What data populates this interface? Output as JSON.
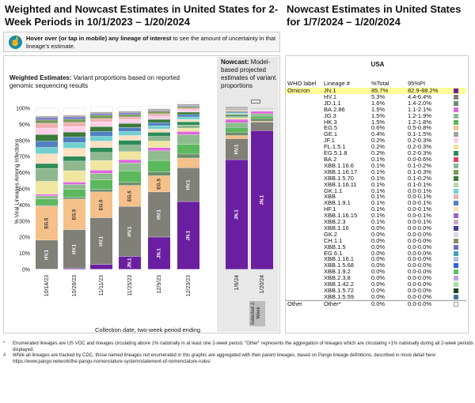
{
  "header": {
    "main_title": "Weighted and Nowcast Estimates in United States for 2-Week Periods in 10/1/2023 – 1/20/2024",
    "side_title": "Nowcast Estimates in United States for 1/7/2024 – 1/20/2024"
  },
  "hover_box": {
    "bold": "Hover over (or tap in mobile) any lineage of interest",
    "rest": " to see the amount of uncertainty in that lineage's estimate."
  },
  "weighted": {
    "bold": "Weighted Estimates:",
    "rest": " Variant proportions based on reported genomic sequencing results"
  },
  "nowcast": {
    "bold": "Nowcast:",
    "rest": " Model-based projected estimates of variant proportions"
  },
  "selected_label": "Selected 2-Week",
  "footnotes": [
    {
      "mark": "*",
      "text": "Enumerated lineages are US VOC and lineages circulating above 1% nationally in at least one 2-week period. \"Other\" represents the aggregation of lineages which are circulating <1% nationally during all 2-week periods displayed."
    },
    {
      "mark": "#",
      "text": "While all lineages are tracked by CDC, those named lineages not enumerated in this graphic are aggregated with their parent lineages, based on Pango lineage definitions, described in more detail here: https://www.pango.network/the-pango-nomenclature-system/statement-of-nomenclature-rules/."
    }
  ],
  "table": {
    "region": "USA",
    "headers": {
      "who": "WHO label",
      "lineage": "Lineage #",
      "pct": "%Total",
      "pi": "95%PI"
    },
    "groups": [
      {
        "who": "Omicron",
        "rows": [
          {
            "lineage": "JN.1",
            "pct": "85.7%",
            "pi": "82.9-88.2%",
            "color": "#6a1fa0"
          },
          {
            "lineage": "HV.1",
            "pct": "5.3%",
            "pi": "4.4-6.4%",
            "color": "#808078"
          },
          {
            "lineage": "JD.1.1",
            "pct": "1.6%",
            "pi": "1.4-2.0%",
            "color": "#6b8e6b"
          },
          {
            "lineage": "BA.2.86",
            "pct": "1.5%",
            "pi": "1.1-2.1%",
            "color": "#e066e0"
          },
          {
            "lineage": "JG.3",
            "pct": "1.5%",
            "pi": "1.2-1.9%",
            "color": "#8fbc8f"
          },
          {
            "lineage": "HK.3",
            "pct": "1.5%",
            "pi": "1.2-1.8%",
            "color": "#5cb85c"
          },
          {
            "lineage": "EG.5",
            "pct": "0.6%",
            "pi": "0.5-0.8%",
            "color": "#f5c08a"
          },
          {
            "lineage": "GE.1",
            "pct": "0.4%",
            "pi": "0.1-1.5%",
            "color": "#a0a0a0"
          },
          {
            "lineage": "JF.1",
            "pct": "0.2%",
            "pi": "0.2-0.3%",
            "color": "#ffd0e8"
          },
          {
            "lineage": "FL.1.5.1",
            "pct": "0.2%",
            "pi": "0.2-0.3%",
            "color": "#f0e6a0"
          },
          {
            "lineage": "EG.5.1.8",
            "pct": "0.2%",
            "pi": "0.2-0.3%",
            "color": "#2e8b57"
          },
          {
            "lineage": "BA.2",
            "pct": "0.1%",
            "pi": "0.0-0.6%",
            "color": "#e04060"
          },
          {
            "lineage": "XBB.1.16.6",
            "pct": "0.1%",
            "pi": "0.1-0.2%",
            "color": "#90b890"
          },
          {
            "lineage": "XBB.1.16.17",
            "pct": "0.1%",
            "pi": "0.1-0.3%",
            "color": "#7a9a5a"
          },
          {
            "lineage": "XBB.1.5.70",
            "pct": "0.1%",
            "pi": "0.1-0.2%",
            "color": "#3a7a3a"
          },
          {
            "lineage": "XBB.1.16.11",
            "pct": "0.1%",
            "pi": "0.1-0.1%",
            "color": "#b8d8a8"
          },
          {
            "lineage": "GK.1.1",
            "pct": "0.1%",
            "pi": "0.0-0.1%",
            "color": "#70d0d0"
          },
          {
            "lineage": "XBB",
            "pct": "0.1%",
            "pi": "0.0-0.1%",
            "color": "#f0b0b0"
          },
          {
            "lineage": "XBB.1.9.1",
            "pct": "0.1%",
            "pi": "0.0-0.1%",
            "color": "#5080c0"
          },
          {
            "lineage": "HF.1",
            "pct": "0.1%",
            "pi": "0.0-0.1%",
            "color": "#ffe0c0"
          },
          {
            "lineage": "XBB.1.16.15",
            "pct": "0.1%",
            "pi": "0.0-0.1%",
            "color": "#a060c0"
          },
          {
            "lineage": "XBB.2.3",
            "pct": "0.1%",
            "pi": "0.0-0.1%",
            "color": "#d0a8d0"
          },
          {
            "lineage": "XBB.1.16",
            "pct": "0.0%",
            "pi": "0.0-0.0%",
            "color": "#404090"
          },
          {
            "lineage": "GK.2",
            "pct": "0.0%",
            "pi": "0.0-0.0%",
            "color": "#d8d8f0"
          },
          {
            "lineage": "CH.1.1",
            "pct": "0.0%",
            "pi": "0.0-0.0%",
            "color": "#8a8a60"
          },
          {
            "lineage": "XBB.1.5",
            "pct": "0.0%",
            "pi": "0.0-0.0%",
            "color": "#7070c0"
          },
          {
            "lineage": "EG.6.1",
            "pct": "0.0%",
            "pi": "0.0-0.0%",
            "color": "#40a0c0"
          },
          {
            "lineage": "XBB.1.16.1",
            "pct": "0.0%",
            "pi": "0.0-0.0%",
            "color": "#b0c0e0"
          },
          {
            "lineage": "XBB.1.5.68",
            "pct": "0.0%",
            "pi": "0.0-0.0%",
            "color": "#3060d0"
          },
          {
            "lineage": "XBB.1.9.2",
            "pct": "0.0%",
            "pi": "0.0-0.0%",
            "color": "#60c060"
          },
          {
            "lineage": "XBB.2.3.8",
            "pct": "0.0%",
            "pi": "0.0-0.0%",
            "color": "#c0a0e0"
          },
          {
            "lineage": "XBB.1.42.2",
            "pct": "0.0%",
            "pi": "0.0-0.0%",
            "color": "#a8e0a8"
          },
          {
            "lineage": "XBB.1.5.72",
            "pct": "0.0%",
            "pi": "0.0-0.0%",
            "color": "#204020"
          },
          {
            "lineage": "XBB.1.5.59",
            "pct": "0.0%",
            "pi": "0.0-0.0%",
            "color": "#4a7090"
          }
        ]
      },
      {
        "who": "Other",
        "rows": [
          {
            "lineage": "Other*",
            "pct": "0.0%",
            "pi": "0.0-0.0%",
            "color": "#ffffff"
          }
        ]
      }
    ]
  },
  "chart_data": {
    "type": "bar",
    "stacked": true,
    "ylabel": "% Viral Lineages Among Infections",
    "xlabel": "Collection date, two-week period ending",
    "ylim": [
      0,
      100
    ],
    "yticks": [
      "0%",
      "10%",
      "20%",
      "30%",
      "40%",
      "50%",
      "60%",
      "70%",
      "80%",
      "90%",
      "100%"
    ],
    "weighted_categories": [
      "10/14/23",
      "10/28/23",
      "11/11/23",
      "11/25/23",
      "12/9/23",
      "12/23/23"
    ],
    "nowcast_categories": [
      "1/6/24",
      "1/20/24"
    ],
    "series": [
      {
        "name": "JN.1",
        "color": "#6a1fa0",
        "values": [
          0.1,
          0.6,
          3,
          8,
          20,
          42,
          68,
          86
        ]
      },
      {
        "name": "HV.1",
        "color": "#808078",
        "values": [
          18,
          24,
          29,
          31,
          28,
          21,
          13,
          5.3
        ]
      },
      {
        "name": "EG.5",
        "color": "#f5c08a",
        "values": [
          21,
          19,
          16,
          13,
          10,
          6,
          2,
          0.6
        ]
      },
      {
        "name": "JD.1.1",
        "color": "#6b8e6b",
        "values": [
          0.5,
          1,
          1.5,
          2,
          2.5,
          2.5,
          2,
          1.6
        ]
      },
      {
        "name": "HK.3",
        "color": "#5cb85c",
        "values": [
          4,
          5,
          6,
          7,
          7,
          6,
          3,
          1.5
        ]
      },
      {
        "name": "JG.3",
        "color": "#8fbc8f",
        "values": [
          2,
          3,
          4,
          5,
          6,
          6,
          3,
          1.5
        ]
      },
      {
        "name": "BA.2.86",
        "color": "#e066e0",
        "values": [
          1,
          1.5,
          2,
          2,
          2,
          2,
          2,
          1.5
        ]
      },
      {
        "name": "FL.1.5.1",
        "color": "#f0e6a0",
        "values": [
          8,
          7,
          6,
          5,
          4,
          2,
          1,
          0.2
        ]
      },
      {
        "name": "XBB.1.16.6",
        "color": "#90b890",
        "values": [
          8,
          6,
          5,
          4,
          3,
          2,
          1,
          0.1
        ]
      },
      {
        "name": "EG.5.1.8",
        "color": "#2e8b57",
        "values": [
          3,
          3,
          3,
          3,
          2.5,
          2,
          1,
          0.2
        ]
      },
      {
        "name": "HF.1",
        "color": "#ffe0c0",
        "values": [
          6,
          5,
          4,
          3,
          2,
          1.5,
          0.5,
          0.1
        ]
      },
      {
        "name": "GK.1.1",
        "color": "#70d0d0",
        "values": [
          4,
          3.5,
          3,
          2.5,
          2,
          1.5,
          0.5,
          0.1
        ]
      },
      {
        "name": "XBB.1.9.1",
        "color": "#5080c0",
        "values": [
          4,
          3.5,
          3,
          2.5,
          2,
          1.5,
          0.5,
          0.1
        ]
      },
      {
        "name": "XBB.1.5.70",
        "color": "#3a7a3a",
        "values": [
          4,
          3,
          3,
          2.5,
          2,
          1.5,
          0.5,
          0.1
        ]
      },
      {
        "name": "JF.1",
        "color": "#ffd0e8",
        "values": [
          4,
          3.5,
          3,
          2.5,
          2,
          1.5,
          0.5,
          0.2
        ]
      },
      {
        "name": "XBB",
        "color": "#f0b0b0",
        "values": [
          3,
          2.5,
          2,
          1.5,
          1.5,
          1,
          0.5,
          0.1
        ]
      },
      {
        "name": "XBB.1.16.17",
        "color": "#7a9a5a",
        "values": [
          2,
          2,
          2,
          1.5,
          1.5,
          1,
          0.5,
          0.1
        ]
      },
      {
        "name": "XBB.1.5",
        "color": "#7070c0",
        "values": [
          1.4,
          1.4,
          1,
          1,
          0.5,
          0.5,
          0.2,
          0
        ]
      },
      {
        "name": "GE.1",
        "color": "#a0a0a0",
        "values": [
          1,
          1,
          1,
          1,
          1,
          1,
          1,
          0.4
        ]
      },
      {
        "name": "Other*",
        "color": "#ffffff",
        "values": [
          5,
          4.5,
          3.5,
          3,
          2,
          1.5,
          0.3,
          0
        ]
      }
    ],
    "bar_labels": [
      {
        "bar": 0,
        "series": "HV.1",
        "text": "HV.1"
      },
      {
        "bar": 0,
        "series": "EG.5",
        "text": "EG.5"
      },
      {
        "bar": 1,
        "series": "HV.1",
        "text": "HV.1"
      },
      {
        "bar": 1,
        "series": "EG.5",
        "text": "EG.5"
      },
      {
        "bar": 2,
        "series": "HV.1",
        "text": "HV.1"
      },
      {
        "bar": 2,
        "series": "EG.5",
        "text": "EG.5"
      },
      {
        "bar": 3,
        "series": "JN.1",
        "text": "JN.1"
      },
      {
        "bar": 3,
        "series": "HV.1",
        "text": "HV.1"
      },
      {
        "bar": 3,
        "series": "EG.5",
        "text": "EG.5"
      },
      {
        "bar": 4,
        "series": "JN.1",
        "text": "JN.1"
      },
      {
        "bar": 4,
        "series": "HV.1",
        "text": "HV.1"
      },
      {
        "bar": 4,
        "series": "EG.5",
        "text": "EG.5"
      },
      {
        "bar": 5,
        "series": "JN.1",
        "text": "JN.1"
      },
      {
        "bar": 5,
        "series": "HV.1",
        "text": "HV.1"
      },
      {
        "bar": 6,
        "series": "JN.1",
        "text": "JN.1"
      },
      {
        "bar": 6,
        "series": "HV.1",
        "text": "HV.1"
      },
      {
        "bar": 7,
        "series": "JN.1",
        "text": "JN.1"
      }
    ]
  }
}
